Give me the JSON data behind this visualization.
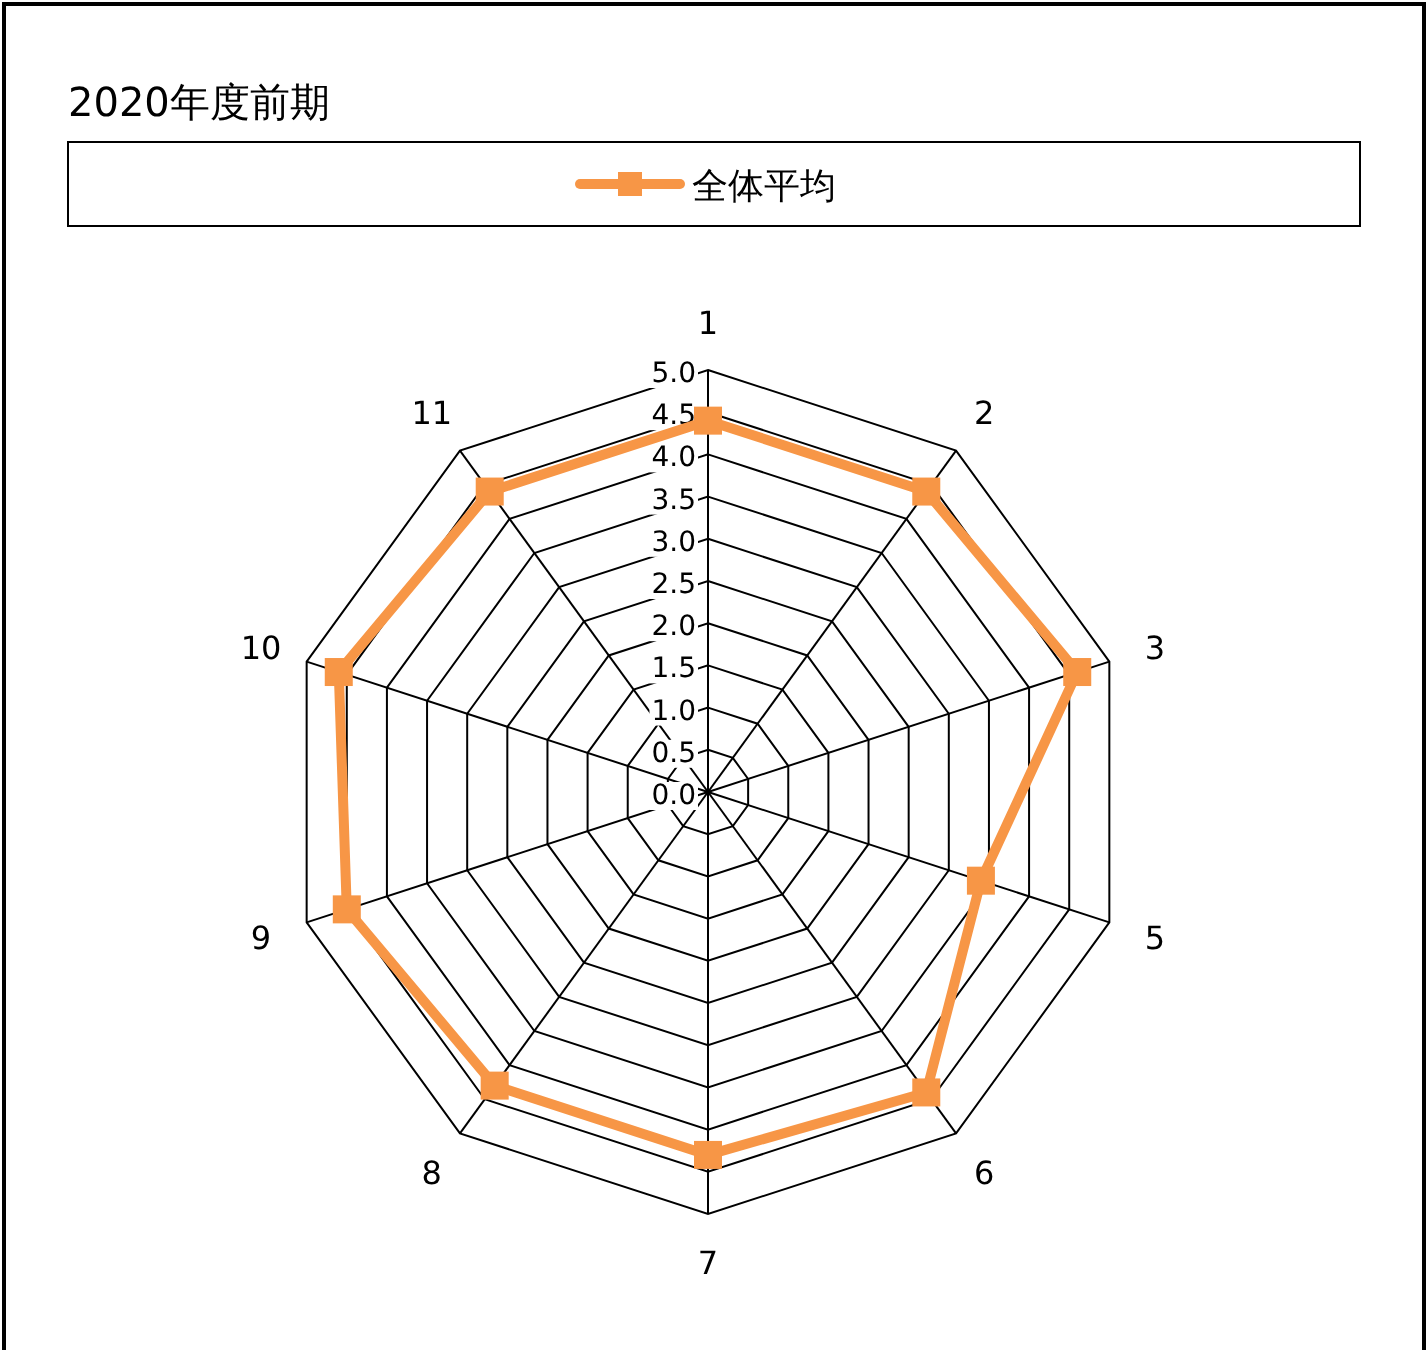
{
  "chart_data": {
    "type": "radar",
    "title": "2020年度前期",
    "categories": [
      "1",
      "2",
      "3",
      "5",
      "6",
      "7",
      "8",
      "9",
      "10",
      "11"
    ],
    "series": [
      {
        "name": "全体平均",
        "color": "#f79646",
        "values": [
          4.4,
          4.4,
          4.6,
          3.4,
          4.4,
          4.3,
          4.3,
          4.5,
          4.6,
          4.4
        ]
      }
    ],
    "ylim": [
      0,
      5
    ],
    "yticks": [
      {
        "value": 0,
        "label": "0.0"
      },
      {
        "value": 0.5,
        "label": "0.5"
      },
      {
        "value": 1,
        "label": "1.0"
      },
      {
        "value": 1.5,
        "label": "1.5"
      },
      {
        "value": 2,
        "label": "2.0"
      },
      {
        "value": 2.5,
        "label": "2.5"
      },
      {
        "value": 3,
        "label": "3.0"
      },
      {
        "value": 3.5,
        "label": "3.5"
      },
      {
        "value": 4,
        "label": "4.0"
      },
      {
        "value": 4.5,
        "label": "4.5"
      },
      {
        "value": 5,
        "label": "5.0"
      }
    ],
    "grid": true,
    "legend": "top",
    "marker": "square",
    "line_style": "solid"
  }
}
